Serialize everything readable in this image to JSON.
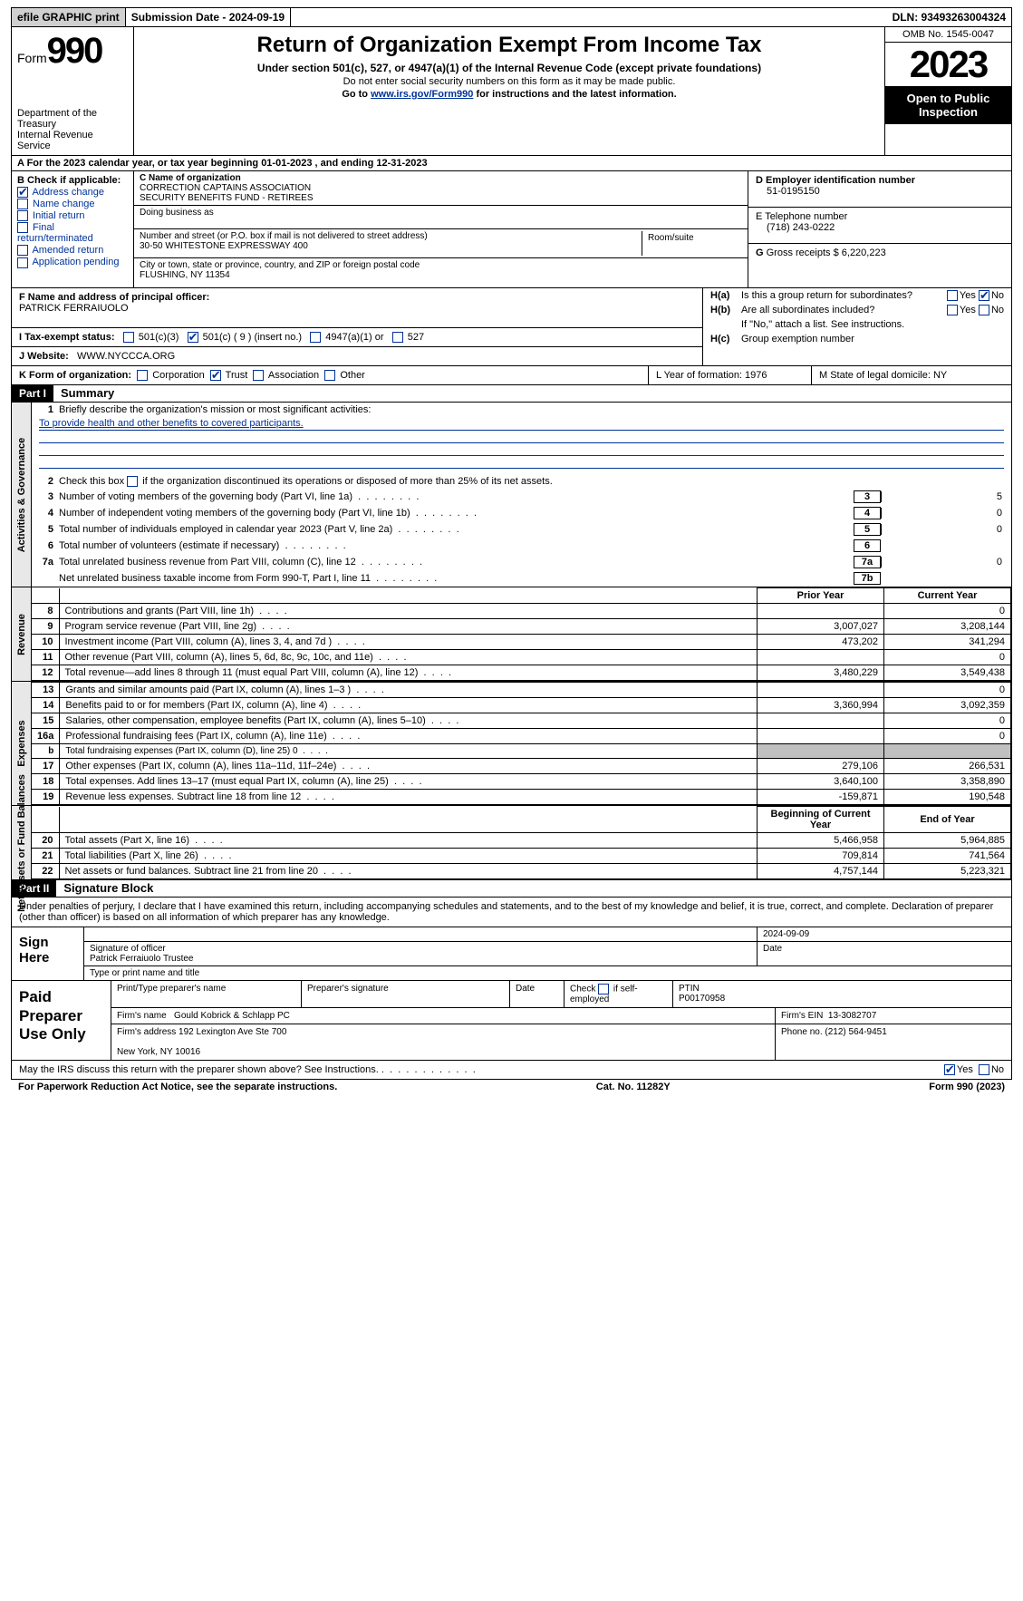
{
  "topbar": {
    "efile": "efile GRAPHIC print",
    "submission": "Submission Date - 2024-09-19",
    "dln": "DLN: 93493263004324"
  },
  "header": {
    "form_prefix": "Form",
    "form_num": "990",
    "dept": "Department of the Treasury\nInternal Revenue Service",
    "title": "Return of Organization Exempt From Income Tax",
    "subtitle": "Under section 501(c), 527, or 4947(a)(1) of the Internal Revenue Code (except private foundations)",
    "note1": "Do not enter social security numbers on this form as it may be made public.",
    "note2_pre": "Go to ",
    "note2_link": "www.irs.gov/Form990",
    "note2_post": " for instructions and the latest information.",
    "omb": "OMB No. 1545-0047",
    "year": "2023",
    "open": "Open to Public Inspection"
  },
  "row_a": "A For the 2023 calendar year, or tax year beginning 01-01-2023    , and ending 12-31-2023",
  "b": {
    "label": "B Check if applicable:",
    "items": [
      "Address change",
      "Name change",
      "Initial return",
      "Final return/terminated",
      "Amended return",
      "Application pending"
    ],
    "checked": [
      true,
      false,
      false,
      false,
      false,
      false
    ]
  },
  "c": {
    "name_label": "C Name of organization",
    "name": "CORRECTION CAPTAINS ASSOCIATION\nSECURITY BENEFITS FUND - RETIREES",
    "dba_label": "Doing business as",
    "street_label": "Number and street (or P.O. box if mail is not delivered to street address)",
    "street": "30-50 WHITESTONE EXPRESSWAY 400",
    "room_label": "Room/suite",
    "city_label": "City or town, state or province, country, and ZIP or foreign postal code",
    "city": "FLUSHING, NY  11354"
  },
  "d": {
    "label": "D Employer identification number",
    "value": "51-0195150"
  },
  "e": {
    "label": "E Telephone number",
    "value": "(718) 243-0222"
  },
  "g": {
    "label": "G",
    "text": "Gross receipts $ 6,220,223"
  },
  "f": {
    "label": "F  Name and address of principal officer:",
    "value": "PATRICK FERRAIUOLO"
  },
  "h": {
    "a_label": "H(a)",
    "a_text": "Is this a group return for subordinates?",
    "a_no": true,
    "b_label": "H(b)",
    "b_text": "Are all subordinates included?",
    "b_note": "If \"No,\" attach a list. See instructions.",
    "c_label": "H(c)",
    "c_text": "Group exemption number"
  },
  "i": {
    "label": "I   Tax-exempt status:",
    "opts": [
      "501(c)(3)",
      "501(c) ( 9 ) (insert no.)",
      "4947(a)(1) or",
      "527"
    ],
    "checked": [
      false,
      true,
      false,
      false
    ]
  },
  "j": {
    "label": "J    Website:",
    "value": "WWW.NYCCCA.ORG"
  },
  "k": {
    "label": "K Form of organization:",
    "opts": [
      "Corporation",
      "Trust",
      "Association",
      "Other"
    ],
    "checked": [
      false,
      true,
      false,
      false
    ]
  },
  "l": {
    "label": "L Year of formation: 1976"
  },
  "m": {
    "label": "M State of legal domicile: NY"
  },
  "part1": {
    "num": "Part I",
    "title": "Summary"
  },
  "gov": {
    "vert": "Activities & Governance",
    "l1": {
      "num": "1",
      "text": "Briefly describe the organization's mission or most significant activities:",
      "mission": "To provide health and other benefits to covered participants."
    },
    "l2": {
      "num": "2",
      "text": "Check this box       if the organization discontinued its operations or disposed of more than 25% of its net assets."
    },
    "rows": [
      {
        "num": "3",
        "text": "Number of voting members of the governing body (Part VI, line 1a)",
        "box": "3",
        "val": "5"
      },
      {
        "num": "4",
        "text": "Number of independent voting members of the governing body (Part VI, line 1b)",
        "box": "4",
        "val": "0"
      },
      {
        "num": "5",
        "text": "Total number of individuals employed in calendar year 2023 (Part V, line 2a)",
        "box": "5",
        "val": "0"
      },
      {
        "num": "6",
        "text": "Total number of volunteers (estimate if necessary)",
        "box": "6",
        "val": ""
      },
      {
        "num": "7a",
        "text": "Total unrelated business revenue from Part VIII, column (C), line 12",
        "box": "7a",
        "val": "0"
      },
      {
        "num": "",
        "text": "Net unrelated business taxable income from Form 990-T, Part I, line 11",
        "box": "7b",
        "val": ""
      }
    ]
  },
  "rev": {
    "vert": "Revenue",
    "hdr_py": "Prior Year",
    "hdr_cy": "Current Year",
    "rows": [
      {
        "num": "8",
        "text": "Contributions and grants (Part VIII, line 1h)",
        "py": "",
        "cy": "0"
      },
      {
        "num": "9",
        "text": "Program service revenue (Part VIII, line 2g)",
        "py": "3,007,027",
        "cy": "3,208,144"
      },
      {
        "num": "10",
        "text": "Investment income (Part VIII, column (A), lines 3, 4, and 7d )",
        "py": "473,202",
        "cy": "341,294"
      },
      {
        "num": "11",
        "text": "Other revenue (Part VIII, column (A), lines 5, 6d, 8c, 9c, 10c, and 11e)",
        "py": "",
        "cy": "0"
      },
      {
        "num": "12",
        "text": "Total revenue—add lines 8 through 11 (must equal Part VIII, column (A), line 12)",
        "py": "3,480,229",
        "cy": "3,549,438"
      }
    ]
  },
  "exp": {
    "vert": "Expenses",
    "rows": [
      {
        "num": "13",
        "text": "Grants and similar amounts paid (Part IX, column (A), lines 1–3 )",
        "py": "",
        "cy": "0"
      },
      {
        "num": "14",
        "text": "Benefits paid to or for members (Part IX, column (A), line 4)",
        "py": "3,360,994",
        "cy": "3,092,359"
      },
      {
        "num": "15",
        "text": "Salaries, other compensation, employee benefits (Part IX, column (A), lines 5–10)",
        "py": "",
        "cy": "0"
      },
      {
        "num": "16a",
        "text": "Professional fundraising fees (Part IX, column (A), line 11e)",
        "py": "",
        "cy": "0"
      },
      {
        "num": "b",
        "text": "Total fundraising expenses (Part IX, column (D), line 25) 0",
        "py": "shade",
        "cy": "shade",
        "small": true
      },
      {
        "num": "17",
        "text": "Other expenses (Part IX, column (A), lines 11a–11d, 11f–24e)",
        "py": "279,106",
        "cy": "266,531"
      },
      {
        "num": "18",
        "text": "Total expenses. Add lines 13–17 (must equal Part IX, column (A), line 25)",
        "py": "3,640,100",
        "cy": "3,358,890"
      },
      {
        "num": "19",
        "text": "Revenue less expenses. Subtract line 18 from line 12",
        "py": "-159,871",
        "cy": "190,548"
      }
    ]
  },
  "net": {
    "vert": "Net Assets or Fund Balances",
    "hdr_py": "Beginning of Current Year",
    "hdr_cy": "End of Year",
    "rows": [
      {
        "num": "20",
        "text": "Total assets (Part X, line 16)",
        "py": "5,466,958",
        "cy": "5,964,885"
      },
      {
        "num": "21",
        "text": "Total liabilities (Part X, line 26)",
        "py": "709,814",
        "cy": "741,564"
      },
      {
        "num": "22",
        "text": "Net assets or fund balances. Subtract line 21 from line 20",
        "py": "4,757,144",
        "cy": "5,223,321"
      }
    ]
  },
  "part2": {
    "num": "Part II",
    "title": "Signature Block"
  },
  "sig": {
    "declaration": "Under penalties of perjury, I declare that I have examined this return, including accompanying schedules and statements, and to the best of my knowledge and belief, it is true, correct, and complete. Declaration of preparer (other than officer) is based on all information of which preparer has any knowledge.",
    "sign_here": "Sign Here",
    "date": "2024-09-09",
    "sig_label": "Signature of officer",
    "date_label": "Date",
    "officer": "Patrick Ferraiuolo  Trustee",
    "type_label": "Type or print name and title"
  },
  "prep": {
    "label": "Paid Preparer Use Only",
    "h1": "Print/Type preparer's name",
    "h2": "Preparer's signature",
    "h3": "Date",
    "h4_pre": "Check",
    "h4_post": "if self-employed",
    "h5": "PTIN",
    "ptin": "P00170958",
    "firm_label": "Firm's name",
    "firm": "Gould Kobrick & Schlapp PC",
    "ein_label": "Firm's EIN",
    "ein": "13-3082707",
    "addr_label": "Firm's address",
    "addr": "192 Lexington Ave Ste 700",
    "addr2": "New York, NY  10016",
    "phone_label": "Phone no.",
    "phone": "(212) 564-9451"
  },
  "discuss": {
    "text": "May the IRS discuss this return with the preparer shown above? See Instructions.",
    "yes": true
  },
  "footer": {
    "left": "For Paperwork Reduction Act Notice, see the separate instructions.",
    "mid": "Cat. No. 11282Y",
    "right": "Form 990 (2023)"
  }
}
